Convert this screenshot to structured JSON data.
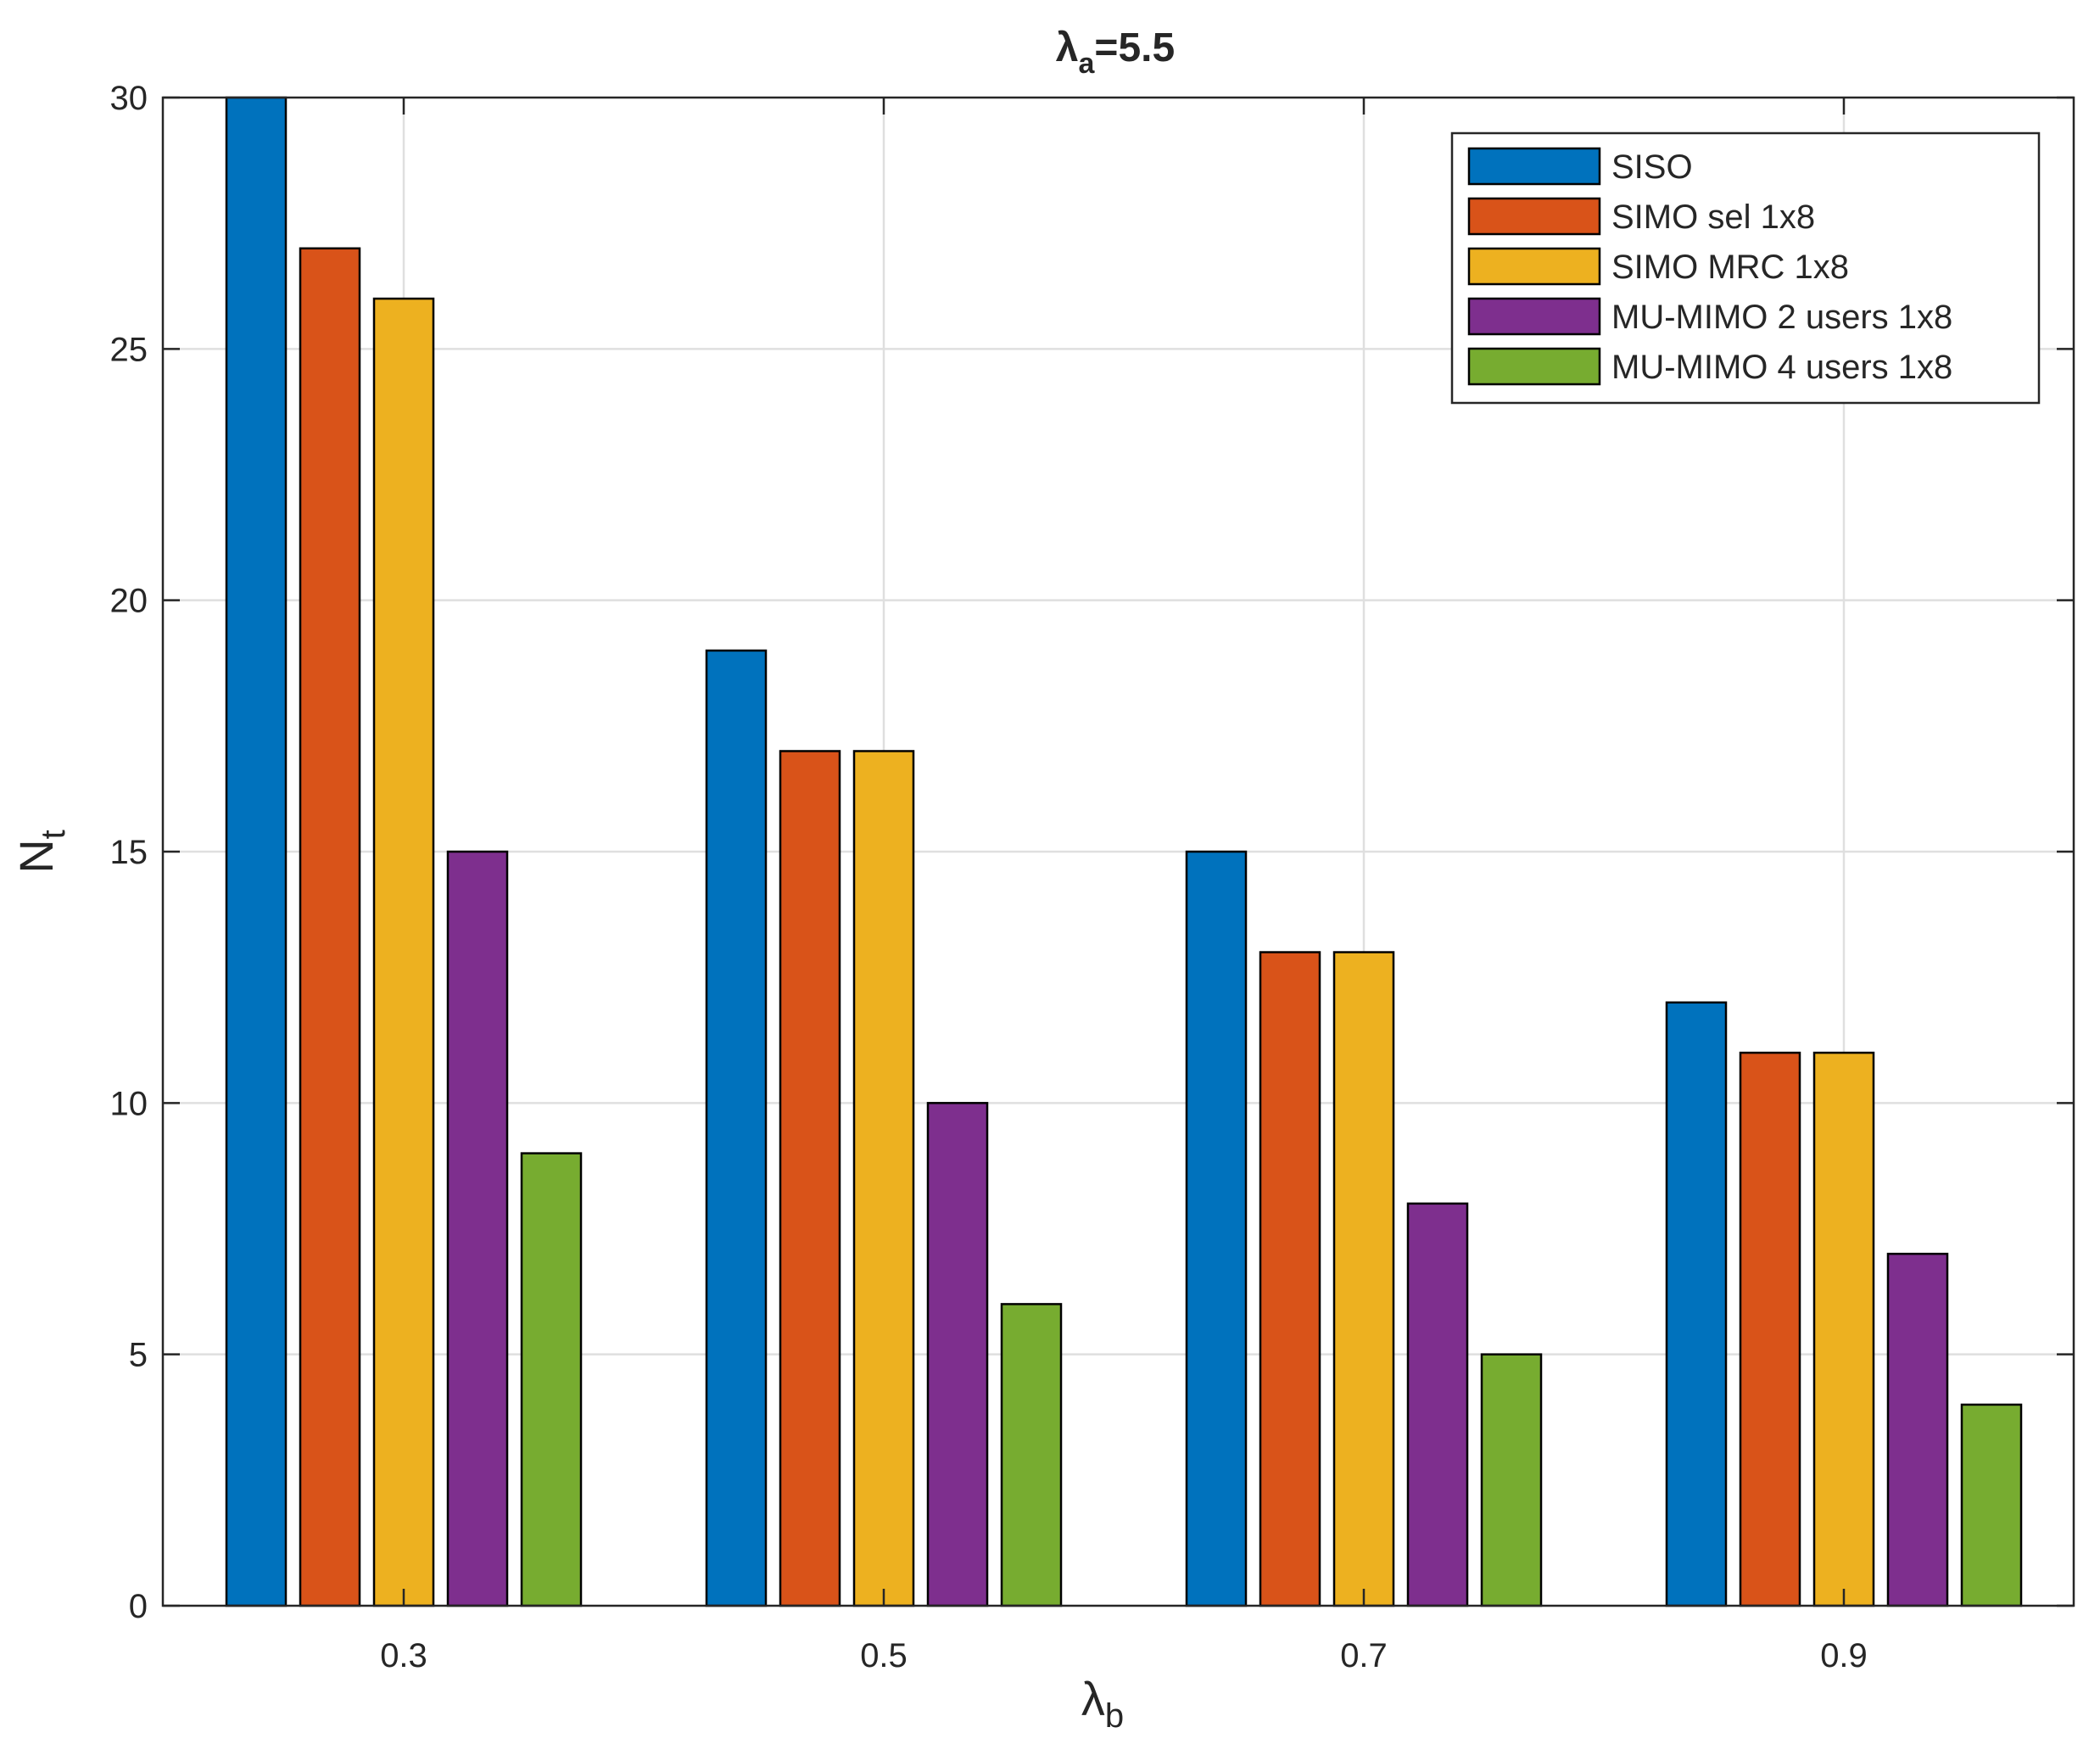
{
  "chart_data": {
    "type": "bar",
    "title": {
      "symbol": "λ",
      "subscript": "a",
      "suffix": "=5.5"
    },
    "xlabel": {
      "symbol": "λ",
      "subscript": "b"
    },
    "ylabel": {
      "symbol": "N",
      "subscript": "t"
    },
    "categories": [
      "0.3",
      "0.5",
      "0.7",
      "0.9"
    ],
    "ylim": [
      0,
      30
    ],
    "yticks": [
      "0",
      "5",
      "10",
      "15",
      "20",
      "25",
      "30"
    ],
    "grid": true,
    "legend_position": "top-right",
    "series": [
      {
        "name": "SISO",
        "color": "#0072BD",
        "values": [
          30,
          19,
          15,
          12
        ]
      },
      {
        "name": "SIMO sel 1x8",
        "color": "#D95319",
        "values": [
          27,
          17,
          13,
          11
        ]
      },
      {
        "name": "SIMO MRC 1x8",
        "color": "#EDB120",
        "values": [
          26,
          17,
          13,
          11
        ]
      },
      {
        "name": "MU-MIMO 2 users 1x8",
        "color": "#7E2F8E",
        "values": [
          15,
          10,
          8,
          7
        ]
      },
      {
        "name": "MU-MIMO 4 users 1x8",
        "color": "#77AC30",
        "values": [
          9,
          6,
          5,
          4
        ]
      }
    ]
  }
}
